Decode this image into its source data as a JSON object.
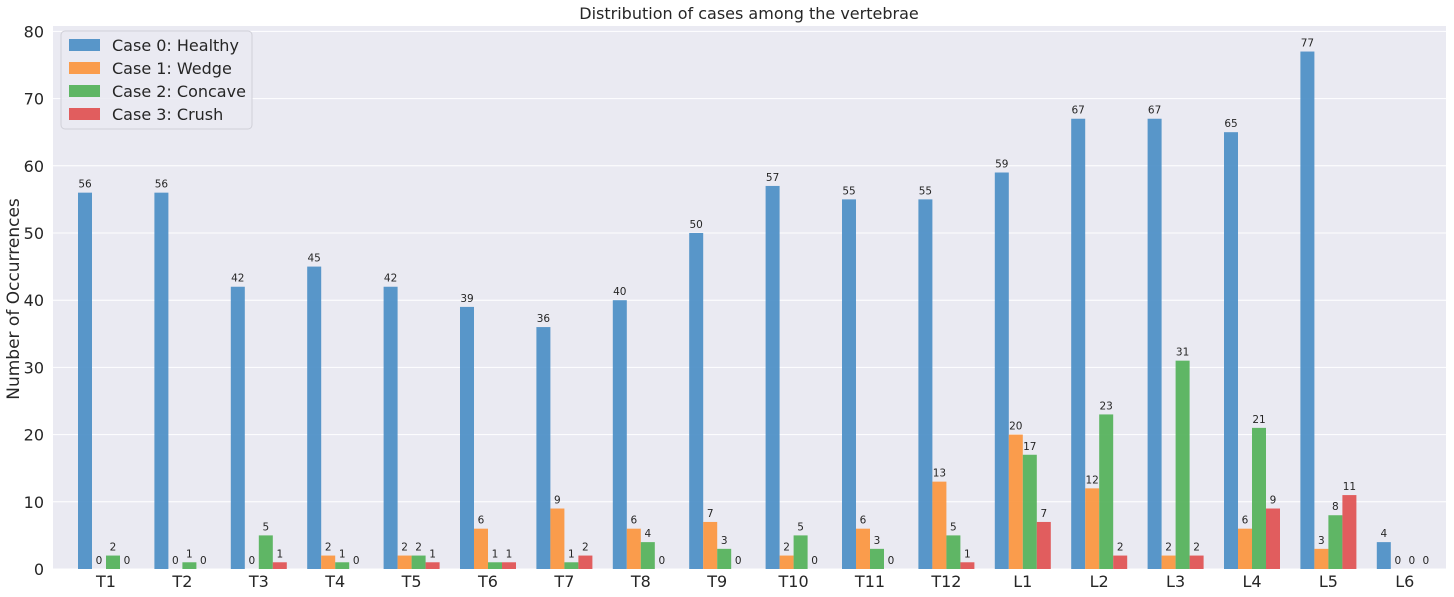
{
  "chart_data": {
    "type": "bar",
    "title": "Distribution of cases among the vertebrae",
    "xlabel": "",
    "ylabel": "Number of Occurrences",
    "categories": [
      "T1",
      "T2",
      "T3",
      "T4",
      "T5",
      "T6",
      "T7",
      "T8",
      "T9",
      "T10",
      "T11",
      "T12",
      "L1",
      "L2",
      "L3",
      "L4",
      "L5",
      "L6"
    ],
    "yticks": [
      0,
      10,
      20,
      30,
      40,
      50,
      60,
      70,
      80
    ],
    "ylim": [
      0,
      80.8
    ],
    "grid": true,
    "legend_position": "top-left",
    "series": [
      {
        "name": "Case 0: Healthy",
        "color": "#4c8fc6",
        "values": [
          56,
          56,
          42,
          45,
          42,
          39,
          36,
          40,
          50,
          57,
          55,
          55,
          59,
          67,
          67,
          65,
          77,
          4
        ]
      },
      {
        "name": "Case 1: Wedge",
        "color": "#fb963f",
        "values": [
          0,
          0,
          0,
          2,
          2,
          6,
          9,
          6,
          7,
          2,
          6,
          13,
          20,
          12,
          2,
          6,
          3,
          0
        ]
      },
      {
        "name": "Case 2: Concave",
        "color": "#54b15a",
        "values": [
          2,
          1,
          5,
          1,
          2,
          1,
          1,
          4,
          3,
          5,
          3,
          5,
          17,
          23,
          31,
          21,
          8,
          0
        ]
      },
      {
        "name": "Case 3: Crush",
        "color": "#e05253",
        "values": [
          0,
          0,
          1,
          0,
          1,
          1,
          2,
          0,
          0,
          0,
          0,
          1,
          7,
          2,
          2,
          9,
          11,
          0
        ]
      }
    ]
  }
}
